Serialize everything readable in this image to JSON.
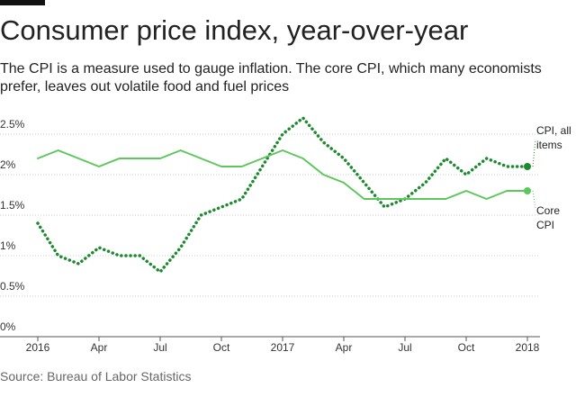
{
  "chart_data": {
    "type": "line",
    "title": "Consumer price index, year-over-year",
    "subtitle": "The CPI is a measure used to gauge inflation. The core CPI, which many economists prefer, leaves out volatile food and fuel prices",
    "source": "Source: Bureau of Labor Statistics",
    "categories": [
      "2016",
      null,
      null,
      "Apr",
      null,
      null,
      "Jul",
      null,
      null,
      "Oct",
      null,
      null,
      "2017",
      null,
      null,
      "Apr",
      null,
      null,
      "Jul",
      null,
      null,
      "Oct",
      null,
      null,
      "2018"
    ],
    "series": [
      {
        "name": "CPI, all items",
        "color": "#1d8a2e",
        "dash": "dotted",
        "values": [
          1.4,
          1.0,
          0.9,
          1.1,
          1.0,
          1.0,
          0.8,
          1.1,
          1.5,
          1.6,
          1.7,
          2.1,
          2.5,
          2.7,
          2.4,
          2.2,
          1.9,
          1.6,
          1.7,
          1.9,
          2.2,
          2.0,
          2.2,
          2.1,
          2.1
        ]
      },
      {
        "name": "Core CPI",
        "color": "#5cc85c",
        "dash": "solid",
        "values": [
          2.2,
          2.3,
          2.2,
          2.1,
          2.2,
          2.2,
          2.2,
          2.3,
          2.2,
          2.1,
          2.1,
          2.2,
          2.3,
          2.2,
          2.0,
          1.9,
          1.7,
          1.7,
          1.7,
          1.7,
          1.7,
          1.8,
          1.7,
          1.8,
          1.8
        ]
      }
    ],
    "ylim": [
      0,
      2.8
    ],
    "yticks": [
      {
        "value": 0,
        "label": "0%"
      },
      {
        "value": 0.5,
        "label": "0.5%"
      },
      {
        "value": 1,
        "label": "1%"
      },
      {
        "value": 1.5,
        "label": "1.5%"
      },
      {
        "value": 2,
        "label": "2%"
      },
      {
        "value": 2.5,
        "label": "2.5%"
      }
    ],
    "grid": true
  }
}
